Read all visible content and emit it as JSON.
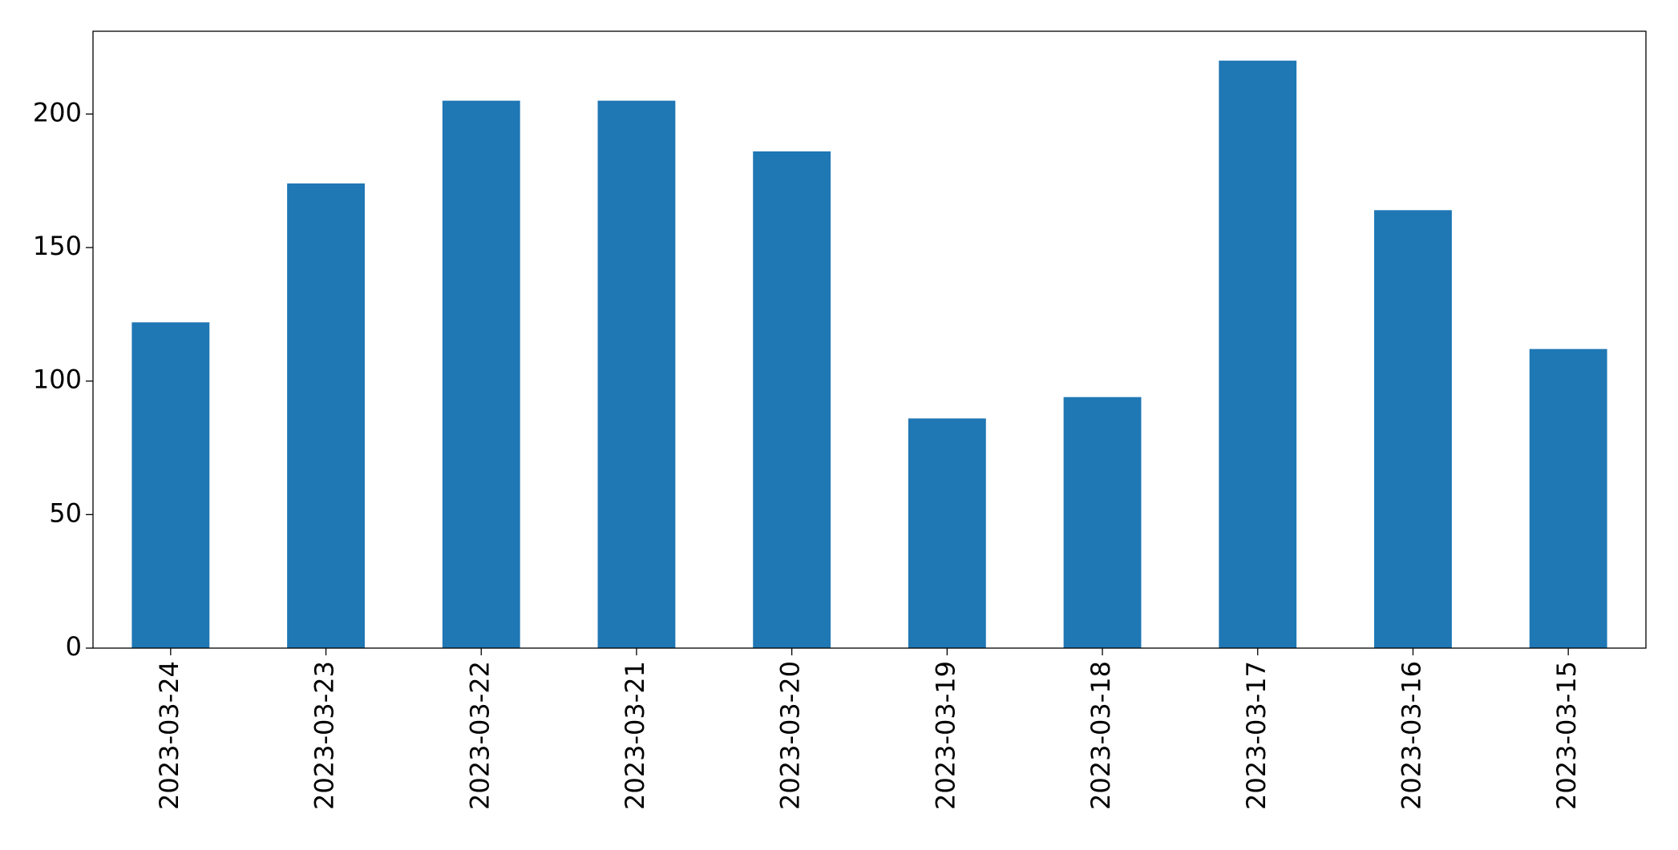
{
  "chart_data": {
    "type": "bar",
    "categories": [
      "2023-03-24",
      "2023-03-23",
      "2023-03-22",
      "2023-03-21",
      "2023-03-20",
      "2023-03-19",
      "2023-03-18",
      "2023-03-17",
      "2023-03-16",
      "2023-03-15"
    ],
    "values": [
      122,
      174,
      205,
      205,
      186,
      86,
      94,
      220,
      164,
      112
    ],
    "color": "#1f77b4",
    "ylim": [
      0,
      231
    ],
    "yticks": [
      0,
      50,
      100,
      150,
      200
    ],
    "grid": false
  }
}
